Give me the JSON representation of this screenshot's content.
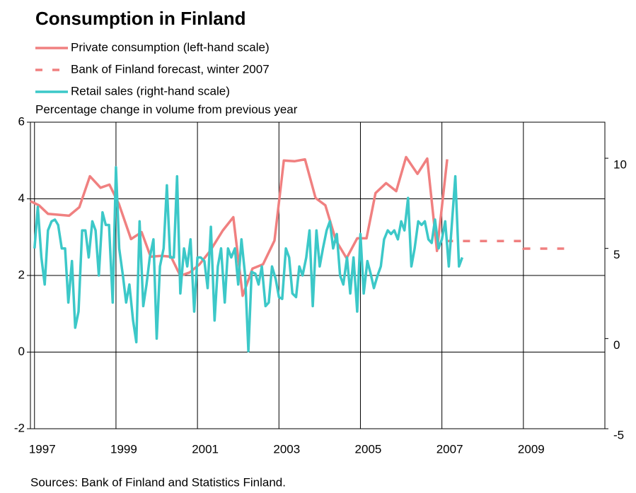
{
  "chart_data": {
    "type": "line",
    "title": "Consumption in Finland",
    "y_label": "Percentage change in volume from previous year",
    "source": "Sources: Bank of Finland and Statistics Finland.",
    "xlim": [
      1996.9,
      2011
    ],
    "xticks": [
      1997,
      1999,
      2001,
      2003,
      2005,
      2007,
      2009
    ],
    "ylim": [
      -2,
      6
    ],
    "yticks": [
      -2,
      0,
      2,
      4,
      6
    ],
    "y2lim": [
      -5,
      12
    ],
    "y2ticks": [
      -5,
      0,
      5,
      10
    ],
    "grid": true,
    "legend": "top-left",
    "series": [
      {
        "name": "Private consumption (left-hand scale)",
        "color": "#f08080",
        "dash": false,
        "x": [
          1996.9,
          1997.11,
          1997.33,
          1997.63,
          1997.85,
          1998.1,
          1998.36,
          1998.62,
          1998.84,
          1999.07,
          1999.37,
          1999.63,
          1999.85,
          2000.11,
          2000.35,
          2000.58,
          2000.81,
          2001.05,
          2001.31,
          2001.62,
          2001.88,
          2002.11,
          2002.35,
          2002.61,
          2002.89,
          2003.12,
          2003.38,
          2003.64,
          2003.9,
          2004.14,
          2004.4,
          2004.66,
          2004.92,
          2005.15,
          2005.37,
          2005.63,
          2005.88,
          2006.12,
          2006.4,
          2006.64,
          2006.88,
          2007.13
        ],
        "values": [
          3.94,
          3.83,
          3.61,
          3.58,
          3.56,
          3.78,
          4.59,
          4.29,
          4.37,
          3.87,
          2.95,
          3.13,
          2.49,
          2.51,
          2.49,
          1.99,
          2.08,
          2.29,
          2.64,
          3.17,
          3.52,
          1.47,
          2.18,
          2.29,
          2.91,
          5.0,
          4.98,
          5.03,
          4.02,
          3.83,
          2.91,
          2.45,
          2.97,
          2.97,
          4.15,
          4.41,
          4.2,
          5.09,
          4.65,
          5.05,
          2.64,
          5.03
        ]
      },
      {
        "name": "Bank of Finland forecast, winter 2007",
        "color": "#f08080",
        "dash": true,
        "x": [
          2007.1,
          2009.0,
          2009.0,
          2010.0
        ],
        "values": [
          2.9,
          2.9,
          2.7,
          2.7
        ]
      },
      {
        "name": "Retail sales (right-hand scale)",
        "color": "#3cc8c8",
        "dash": false,
        "axis": "y2",
        "x": [
          1997.0,
          1997.08,
          1997.17,
          1997.25,
          1997.33,
          1997.42,
          1997.5,
          1997.58,
          1997.67,
          1997.75,
          1997.83,
          1997.92,
          1998.0,
          1998.08,
          1998.17,
          1998.25,
          1998.33,
          1998.42,
          1998.5,
          1998.58,
          1998.67,
          1998.75,
          1998.83,
          1998.92,
          1999.0,
          1999.08,
          1999.17,
          1999.25,
          1999.33,
          1999.42,
          1999.5,
          1999.58,
          1999.67,
          1999.75,
          1999.83,
          1999.92,
          2000.0,
          2000.08,
          2000.17,
          2000.25,
          2000.33,
          2000.42,
          2000.5,
          2000.58,
          2000.67,
          2000.75,
          2000.83,
          2000.92,
          2001.0,
          2001.08,
          2001.17,
          2001.25,
          2001.33,
          2001.42,
          2001.5,
          2001.58,
          2001.67,
          2001.75,
          2001.83,
          2001.92,
          2002.0,
          2002.08,
          2002.17,
          2002.25,
          2002.33,
          2002.42,
          2002.5,
          2002.58,
          2002.67,
          2002.75,
          2002.83,
          2002.92,
          2003.0,
          2003.08,
          2003.17,
          2003.25,
          2003.33,
          2003.42,
          2003.5,
          2003.58,
          2003.67,
          2003.75,
          2003.83,
          2003.92,
          2004.0,
          2004.08,
          2004.17,
          2004.25,
          2004.33,
          2004.42,
          2004.5,
          2004.58,
          2004.67,
          2004.75,
          2004.83,
          2004.92,
          2005.0,
          2005.08,
          2005.17,
          2005.25,
          2005.33,
          2005.42,
          2005.5,
          2005.58,
          2005.67,
          2005.75,
          2005.83,
          2005.92,
          2006.0,
          2006.08,
          2006.17,
          2006.25,
          2006.33,
          2006.42,
          2006.5,
          2006.58,
          2006.67,
          2006.75,
          2006.83,
          2006.92,
          2007.0,
          2007.08,
          2007.17,
          2007.25,
          2007.33,
          2007.42,
          2007.5
        ],
        "values": [
          5.0,
          7.3,
          4.5,
          3.0,
          6.0,
          6.5,
          6.6,
          6.3,
          5.0,
          5.0,
          2.0,
          4.3,
          0.6,
          1.5,
          6.0,
          6.0,
          4.5,
          6.5,
          6.0,
          3.5,
          7.0,
          6.3,
          6.3,
          2.0,
          9.5,
          5.0,
          3.5,
          2.0,
          3.0,
          1.0,
          -0.2,
          6.5,
          1.8,
          3.0,
          4.5,
          5.5,
          0.0,
          4.0,
          5.0,
          8.5,
          4.5,
          4.5,
          9.0,
          2.5,
          5.0,
          4.0,
          5.5,
          1.5,
          4.5,
          4.5,
          4.3,
          2.8,
          6.2,
          1.0,
          4.0,
          5.0,
          2.0,
          5.0,
          4.5,
          5.0,
          3.0,
          5.5,
          3.5,
          -0.7,
          3.7,
          3.6,
          3.0,
          4.0,
          1.8,
          2.0,
          4.0,
          3.3,
          2.3,
          2.2,
          5.0,
          4.5,
          2.5,
          2.3,
          4.0,
          3.5,
          4.5,
          6.0,
          1.8,
          6.0,
          4.0,
          5.0,
          6.0,
          6.5,
          5.0,
          5.8,
          3.5,
          3.0,
          4.5,
          2.5,
          4.5,
          1.5,
          5.8,
          2.5,
          4.3,
          3.6,
          2.8,
          3.5,
          4.0,
          5.5,
          6.0,
          5.8,
          6.0,
          5.5,
          6.5,
          6.0,
          7.8,
          4.0,
          5.0,
          6.5,
          6.3,
          6.5,
          5.5,
          5.3,
          6.6,
          5.0,
          5.5,
          6.5,
          4.0,
          6.5,
          9.0,
          4.0,
          4.5
        ]
      }
    ]
  }
}
